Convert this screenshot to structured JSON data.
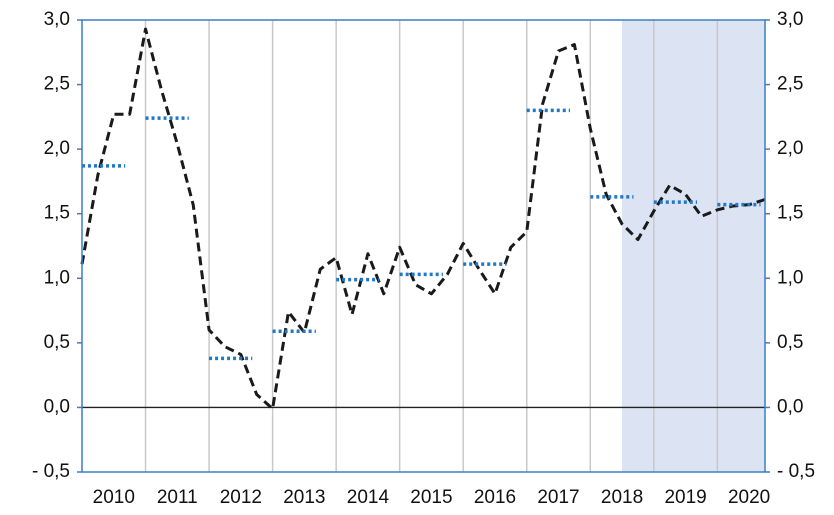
{
  "chart_data": {
    "type": "line",
    "series": [
      {
        "color": "#1a1a1a",
        "style": "dashed",
        "x": [
          2010,
          2010.25,
          2010.5,
          2010.75,
          2011,
          2011.25,
          2011.5,
          2011.75,
          2012,
          2012.25,
          2012.5,
          2012.75,
          2013,
          2013.25,
          2013.5,
          2013.75,
          2014,
          2014.25,
          2014.5,
          2014.75,
          2015,
          2015.25,
          2015.5,
          2015.75,
          2016,
          2016.25,
          2016.5,
          2016.75,
          2017,
          2017.25,
          2017.5,
          2017.75,
          2018,
          2018.25,
          2018.5,
          2018.75,
          2019,
          2019.25,
          2019.5,
          2019.75,
          2020,
          2020.25,
          2020.5,
          2020.75
        ],
        "values": [
          1.11,
          1.8,
          2.27,
          2.27,
          2.93,
          2.46,
          2.04,
          1.57,
          0.6,
          0.47,
          0.41,
          0.1,
          -0.01,
          0.74,
          0.58,
          1.07,
          1.16,
          0.72,
          1.19,
          0.88,
          1.24,
          0.95,
          0.88,
          1.03,
          1.27,
          1.07,
          0.88,
          1.24,
          1.36,
          2.35,
          2.76,
          2.81,
          2.16,
          1.65,
          1.42,
          1.3,
          1.52,
          1.72,
          1.65,
          1.48,
          1.53,
          1.56,
          1.57,
          1.61
        ]
      },
      {
        "color": "#1f78c8",
        "style": "dotted",
        "x": [
          2010,
          2011,
          2012,
          2013,
          2014,
          2015,
          2016,
          2017,
          2018,
          2019,
          2020
        ],
        "values": [
          1.87,
          2.24,
          0.38,
          0.59,
          0.99,
          1.03,
          1.11,
          2.3,
          1.63,
          1.59,
          1.57
        ]
      }
    ],
    "xlim": [
      2010,
      2020.75
    ],
    "xticks": [
      {
        "value": 2010.5,
        "label": "2010"
      },
      {
        "value": 2011.5,
        "label": "2011"
      },
      {
        "value": 2012.5,
        "label": "2012"
      },
      {
        "value": 2013.5,
        "label": "2013"
      },
      {
        "value": 2014.5,
        "label": "2014"
      },
      {
        "value": 2015.5,
        "label": "2015"
      },
      {
        "value": 2016.5,
        "label": "2016"
      },
      {
        "value": 2017.5,
        "label": "2017"
      },
      {
        "value": 2018.5,
        "label": "2018"
      },
      {
        "value": 2019.5,
        "label": "2019"
      },
      {
        "value": 2020.5,
        "label": "2020"
      }
    ],
    "xgrid": [
      2011,
      2012,
      2013,
      2014,
      2015,
      2016,
      2017,
      2018,
      2019,
      2020
    ],
    "ylim": [
      -0.5,
      3.0
    ],
    "yticks": [
      {
        "value": -0.5,
        "label": "- 0,5"
      },
      {
        "value": 0,
        "label": "0,0"
      },
      {
        "value": 0.5,
        "label": "0,5"
      },
      {
        "value": 1,
        "label": "1,0"
      },
      {
        "value": 1.5,
        "label": "1,5"
      },
      {
        "value": 2,
        "label": "2,0"
      },
      {
        "value": 2.5,
        "label": "2,5"
      },
      {
        "value": 3,
        "label": "3,0"
      }
    ],
    "y2lim": [
      -0.5,
      3.0
    ],
    "y2ticks": [
      {
        "value": -0.5,
        "label": "- 0,5"
      },
      {
        "value": 0,
        "label": "0,0"
      },
      {
        "value": 0.5,
        "label": "0,5"
      },
      {
        "value": 1,
        "label": "1,0"
      },
      {
        "value": 1.5,
        "label": "1,5"
      },
      {
        "value": 2,
        "label": "2,0"
      },
      {
        "value": 2.5,
        "label": "2,5"
      },
      {
        "value": 3,
        "label": "3,0"
      }
    ],
    "reference_line": 0,
    "highlight_xrange": [
      2018.5,
      2020.75
    ],
    "highlight_color": "#dce3f3",
    "axis_color": "#3b7fc4",
    "grid_color": "#c8c8c8"
  }
}
